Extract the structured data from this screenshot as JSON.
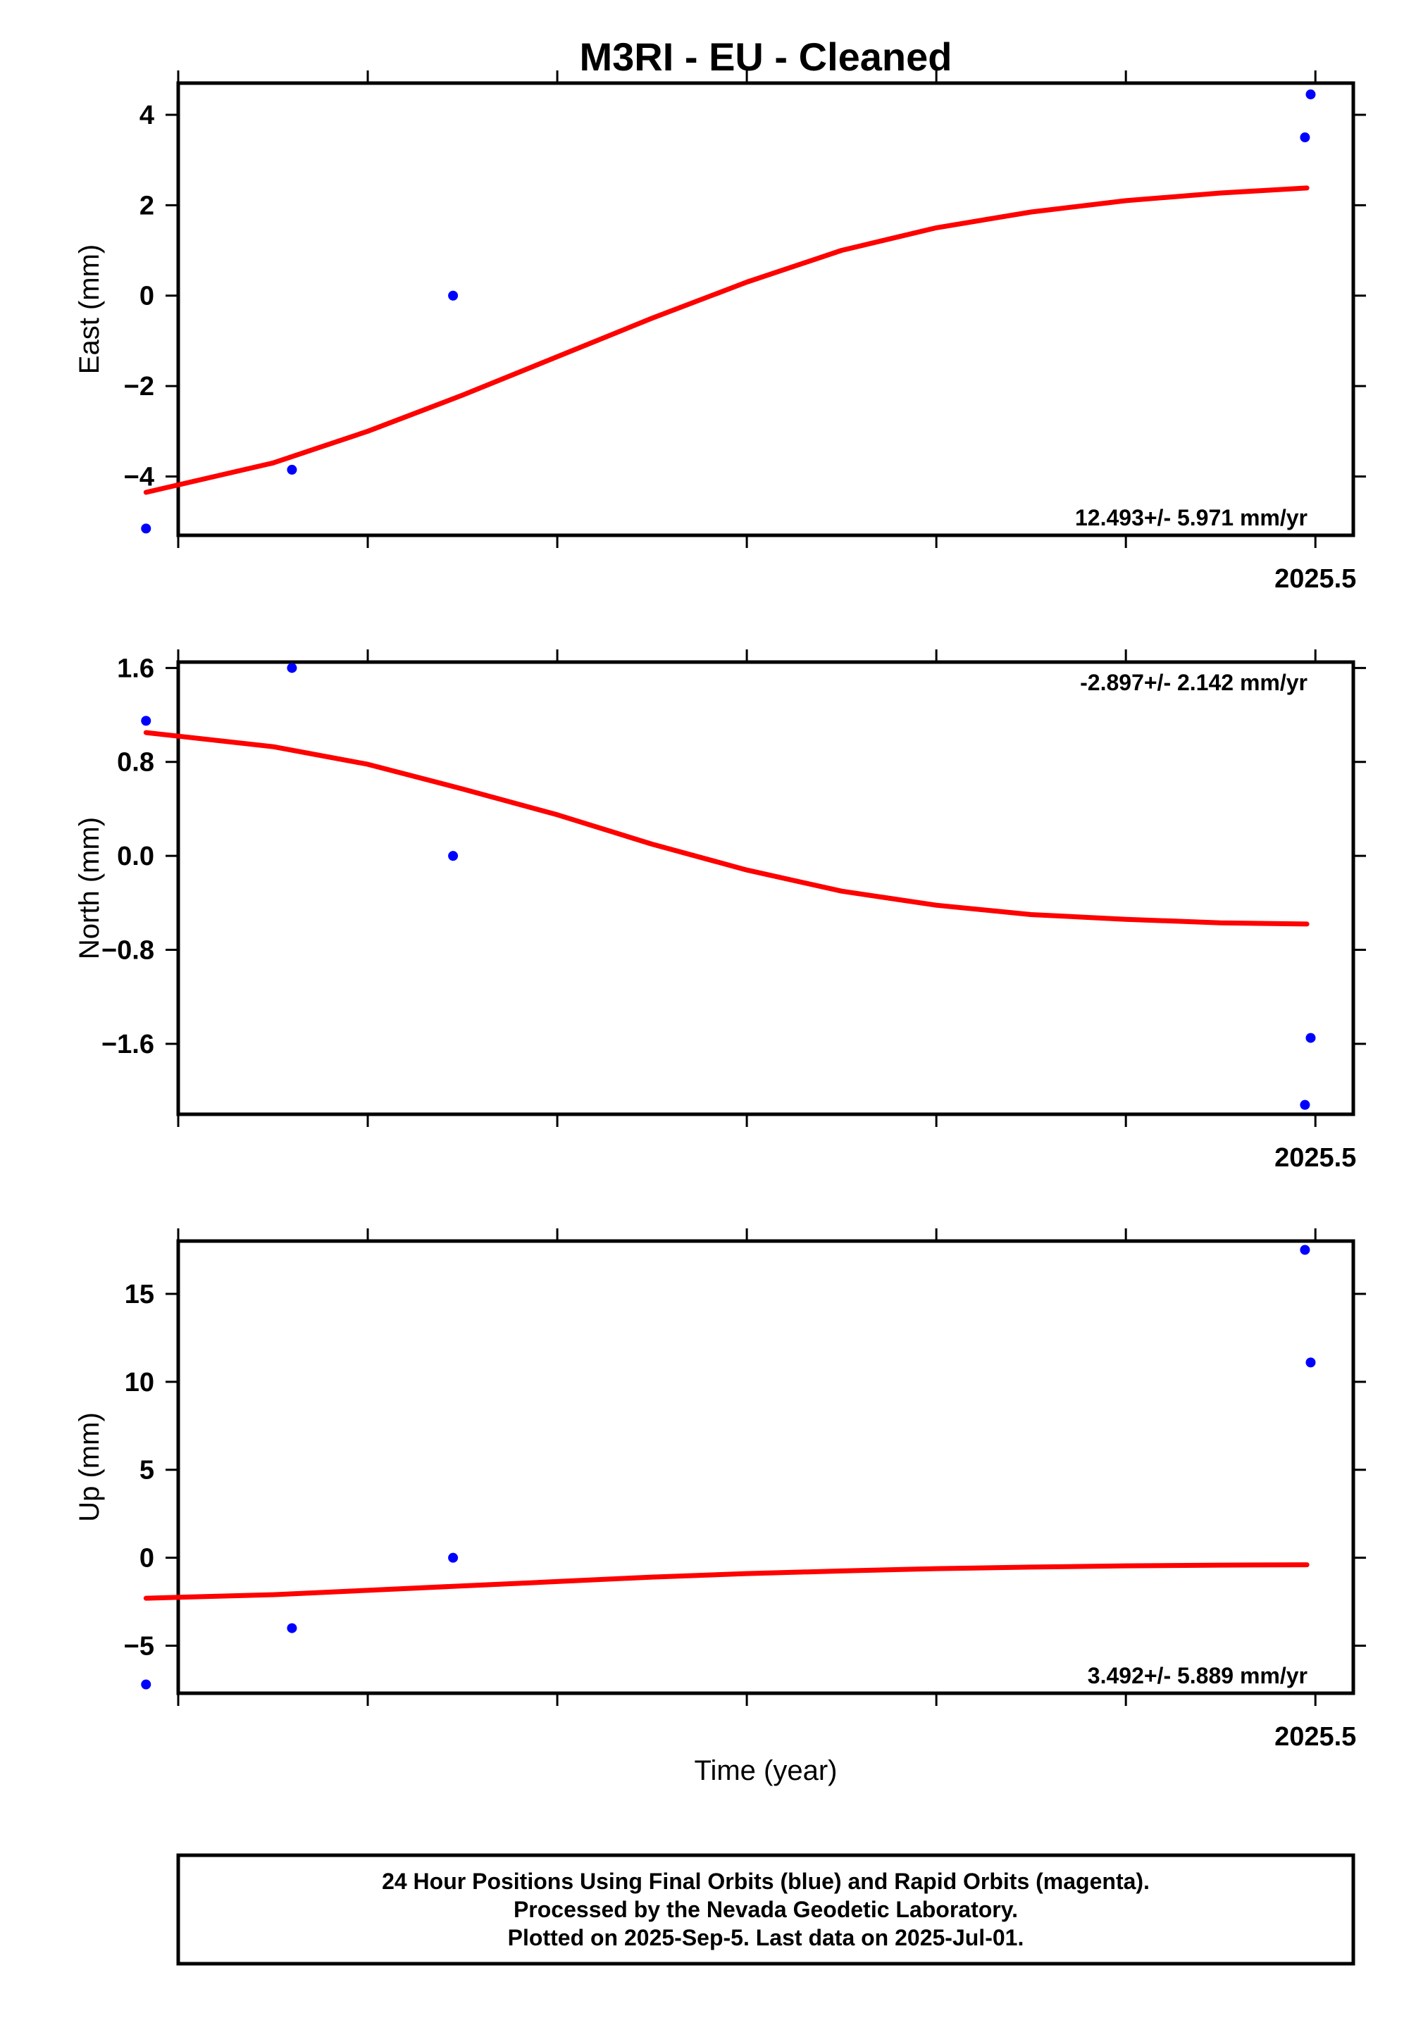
{
  "title": "M3RI  - EU - Cleaned",
  "xlabel": "Time (year)",
  "footer": {
    "lines": [
      "24 Hour Positions Using Final Orbits (blue) and Rapid Orbits (magenta).",
      "Processed by the Nevada Geodetic Laboratory.",
      "Plotted on 2025-Sep-5. Last data on 2025-Jul-01."
    ]
  },
  "colors": {
    "points": "#0000ff",
    "fit": "#ff0000",
    "frame": "#000000"
  },
  "chart_data": [
    {
      "type": "scatter",
      "name": "east",
      "ylabel": "East (mm)",
      "rate_text": "12.493+/- 5.971 mm/yr",
      "rate_position": "bottom-right",
      "xlim": [
        2024.9,
        2025.52
      ],
      "x_ticks": [
        2024.9,
        2025.0,
        2025.1,
        2025.2,
        2025.3,
        2025.4,
        2025.5
      ],
      "x_tick_labels": [
        {
          "x": 2025.5,
          "label": "2025.5"
        }
      ],
      "ylim": [
        -5.3,
        4.7
      ],
      "y_ticks": [
        -4,
        -2,
        0,
        2,
        4
      ],
      "y_tick_labels": [
        "−4",
        "−2",
        "0",
        "2",
        "4"
      ],
      "points": {
        "x": [
          2024.883,
          2024.96,
          2025.045,
          2025.4945,
          2025.4975
        ],
        "y": [
          -5.15,
          -3.85,
          0.0,
          3.5,
          4.45
        ]
      },
      "fit": {
        "x": [
          2024.883,
          2024.95,
          2025.0,
          2025.05,
          2025.1,
          2025.15,
          2025.2,
          2025.25,
          2025.3,
          2025.35,
          2025.4,
          2025.45,
          2025.4955
        ],
        "y": [
          -4.35,
          -3.7,
          -3.0,
          -2.2,
          -1.35,
          -0.5,
          0.3,
          1.0,
          1.5,
          1.85,
          2.1,
          2.27,
          2.38
        ]
      }
    },
    {
      "type": "scatter",
      "name": "north",
      "ylabel": "North (mm)",
      "rate_text": "-2.897+/- 2.142 mm/yr",
      "rate_position": "top-right",
      "xlim": [
        2024.9,
        2025.52
      ],
      "x_ticks": [
        2024.9,
        2025.0,
        2025.1,
        2025.2,
        2025.3,
        2025.4,
        2025.5
      ],
      "x_tick_labels": [
        {
          "x": 2025.5,
          "label": "2025.5"
        }
      ],
      "ylim": [
        -2.2,
        1.65
      ],
      "y_ticks": [
        -1.6,
        -0.8,
        0.0,
        0.8,
        1.6
      ],
      "y_tick_labels": [
        "−1.6",
        "−0.8",
        "0.0",
        "0.8",
        "1.6"
      ],
      "points": {
        "x": [
          2024.883,
          2024.96,
          2025.045,
          2025.4945,
          2025.4975
        ],
        "y": [
          1.15,
          1.6,
          0.0,
          -2.12,
          -1.55
        ]
      },
      "fit": {
        "x": [
          2024.883,
          2024.95,
          2025.0,
          2025.05,
          2025.1,
          2025.15,
          2025.2,
          2025.25,
          2025.3,
          2025.35,
          2025.4,
          2025.45,
          2025.4955
        ],
        "y": [
          1.05,
          0.93,
          0.78,
          0.57,
          0.35,
          0.1,
          -0.12,
          -0.3,
          -0.42,
          -0.5,
          -0.54,
          -0.57,
          -0.58
        ]
      }
    },
    {
      "type": "scatter",
      "name": "up",
      "ylabel": "Up (mm)",
      "rate_text": "3.492+/- 5.889 mm/yr",
      "rate_position": "bottom-right",
      "xlim": [
        2024.9,
        2025.52
      ],
      "x_ticks": [
        2024.9,
        2025.0,
        2025.1,
        2025.2,
        2025.3,
        2025.4,
        2025.5
      ],
      "x_tick_labels": [
        {
          "x": 2025.5,
          "label": "2025.5"
        }
      ],
      "ylim": [
        -7.7,
        18.0
      ],
      "y_ticks": [
        -5,
        0,
        5,
        10,
        15
      ],
      "y_tick_labels": [
        "−5",
        "0",
        "5",
        "10",
        "15"
      ],
      "points": {
        "x": [
          2024.883,
          2024.96,
          2025.045,
          2025.4945,
          2025.4975
        ],
        "y": [
          -7.2,
          -4.0,
          0.0,
          17.5,
          11.1
        ]
      },
      "fit": {
        "x": [
          2024.883,
          2024.95,
          2025.0,
          2025.05,
          2025.1,
          2025.15,
          2025.2,
          2025.25,
          2025.3,
          2025.35,
          2025.4,
          2025.45,
          2025.4955
        ],
        "y": [
          -2.3,
          -2.1,
          -1.85,
          -1.6,
          -1.35,
          -1.1,
          -0.9,
          -0.75,
          -0.62,
          -0.53,
          -0.46,
          -0.42,
          -0.4
        ]
      }
    }
  ]
}
